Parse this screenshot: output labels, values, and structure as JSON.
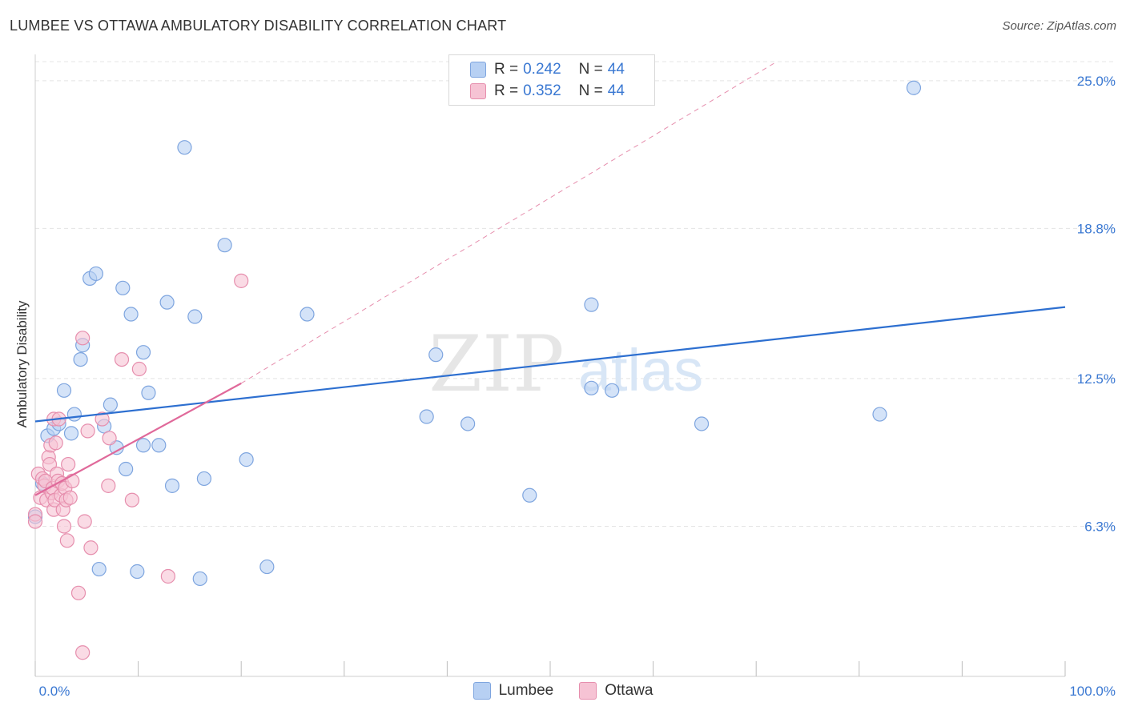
{
  "header": {
    "title": "LUMBEE VS OTTAWA AMBULATORY DISABILITY CORRELATION CHART",
    "source": "Source: ZipAtlas.com"
  },
  "watermark": {
    "zip": "ZIP",
    "atlas": "atlas"
  },
  "legend": {
    "rows": [
      {
        "r_key": "R =",
        "r_val": "0.242",
        "n_key": "N =",
        "n_val": "44"
      },
      {
        "r_key": "R =",
        "r_val": "0.352",
        "n_key": "N =",
        "n_val": "44"
      }
    ]
  },
  "bottom_legend": {
    "items": [
      "Lumbee",
      "Ottawa"
    ]
  },
  "colors": {
    "lumbee_fill": "#b7d0f3",
    "lumbee_stroke": "#7ea5df",
    "lumbee_line": "#2d6fd0",
    "ottawa_fill": "#f6c3d4",
    "ottawa_stroke": "#e68ead",
    "ottawa_line": "#e0699a",
    "grid": "#e4e4e4",
    "tick_label": "#3a78d2"
  },
  "chart_data": {
    "type": "scatter",
    "title": "LUMBEE VS OTTAWA AMBULATORY DISABILITY CORRELATION CHART",
    "ylabel": "Ambulatory Disability",
    "xlabel": "",
    "xlim": [
      0,
      100
    ],
    "ylim": [
      0,
      25.8
    ],
    "y_ticks": [
      6.3,
      12.5,
      18.8,
      25.0
    ],
    "y_tick_labels": [
      "6.3%",
      "12.5%",
      "18.8%",
      "25.0%"
    ],
    "x_tick_labels": [
      "0.0%",
      "100.0%"
    ],
    "grid": true,
    "legend_position": "top-center",
    "series": [
      {
        "name": "Lumbee",
        "r": 0.242,
        "n": 44,
        "trend": {
          "x": [
            0,
            100
          ],
          "y": [
            10.7,
            15.5
          ]
        },
        "points": [
          {
            "x": 0.0,
            "y": 6.7
          },
          {
            "x": 0.7,
            "y": 8.1
          },
          {
            "x": 1.2,
            "y": 10.1
          },
          {
            "x": 1.8,
            "y": 10.4
          },
          {
            "x": 2.3,
            "y": 10.6
          },
          {
            "x": 2.8,
            "y": 12.0
          },
          {
            "x": 3.5,
            "y": 10.2
          },
          {
            "x": 3.8,
            "y": 11.0
          },
          {
            "x": 4.4,
            "y": 13.3
          },
          {
            "x": 4.6,
            "y": 13.9
          },
          {
            "x": 5.3,
            "y": 16.7
          },
          {
            "x": 5.9,
            "y": 16.9
          },
          {
            "x": 6.2,
            "y": 4.5
          },
          {
            "x": 6.7,
            "y": 10.5
          },
          {
            "x": 7.3,
            "y": 11.4
          },
          {
            "x": 7.9,
            "y": 9.6
          },
          {
            "x": 8.5,
            "y": 16.3
          },
          {
            "x": 8.8,
            "y": 8.7
          },
          {
            "x": 9.3,
            "y": 15.2
          },
          {
            "x": 9.9,
            "y": 4.4
          },
          {
            "x": 10.5,
            "y": 13.6
          },
          {
            "x": 10.5,
            "y": 9.7
          },
          {
            "x": 11.0,
            "y": 11.9
          },
          {
            "x": 12.0,
            "y": 9.7
          },
          {
            "x": 12.8,
            "y": 15.7
          },
          {
            "x": 13.3,
            "y": 8.0
          },
          {
            "x": 14.5,
            "y": 22.2
          },
          {
            "x": 15.5,
            "y": 15.1
          },
          {
            "x": 16.0,
            "y": 4.1
          },
          {
            "x": 16.4,
            "y": 8.3
          },
          {
            "x": 18.4,
            "y": 18.1
          },
          {
            "x": 20.5,
            "y": 9.1
          },
          {
            "x": 22.5,
            "y": 4.6
          },
          {
            "x": 26.4,
            "y": 15.2
          },
          {
            "x": 38.0,
            "y": 10.9
          },
          {
            "x": 38.9,
            "y": 13.5
          },
          {
            "x": 42.0,
            "y": 10.6
          },
          {
            "x": 48.0,
            "y": 7.6
          },
          {
            "x": 54.0,
            "y": 15.6
          },
          {
            "x": 54.0,
            "y": 12.1
          },
          {
            "x": 56.0,
            "y": 12.0
          },
          {
            "x": 64.7,
            "y": 10.6
          },
          {
            "x": 82.0,
            "y": 11.0
          },
          {
            "x": 85.3,
            "y": 24.7
          }
        ]
      },
      {
        "name": "Ottawa",
        "r": 0.352,
        "n": 44,
        "trend": {
          "x": [
            0,
            20
          ],
          "y": [
            7.6,
            12.3
          ]
        },
        "trend_extended": {
          "x": [
            20,
            72
          ],
          "y": [
            12.3,
            25.8
          ]
        },
        "points": [
          {
            "x": 0.0,
            "y": 6.8
          },
          {
            "x": 0.3,
            "y": 8.5
          },
          {
            "x": 0.5,
            "y": 7.5
          },
          {
            "x": 0.7,
            "y": 8.3
          },
          {
            "x": 0.9,
            "y": 8.0
          },
          {
            "x": 1.0,
            "y": 8.2
          },
          {
            "x": 1.1,
            "y": 7.4
          },
          {
            "x": 1.3,
            "y": 9.2
          },
          {
            "x": 1.4,
            "y": 8.9
          },
          {
            "x": 1.5,
            "y": 9.7
          },
          {
            "x": 1.6,
            "y": 7.7
          },
          {
            "x": 1.7,
            "y": 7.9
          },
          {
            "x": 1.8,
            "y": 10.8
          },
          {
            "x": 1.8,
            "y": 7.0
          },
          {
            "x": 1.9,
            "y": 7.4
          },
          {
            "x": 2.0,
            "y": 9.8
          },
          {
            "x": 2.1,
            "y": 8.5
          },
          {
            "x": 2.2,
            "y": 8.2
          },
          {
            "x": 2.3,
            "y": 10.8
          },
          {
            "x": 2.5,
            "y": 7.6
          },
          {
            "x": 2.6,
            "y": 8.1
          },
          {
            "x": 2.7,
            "y": 7.0
          },
          {
            "x": 2.8,
            "y": 6.3
          },
          {
            "x": 2.9,
            "y": 7.9
          },
          {
            "x": 3.0,
            "y": 7.4
          },
          {
            "x": 3.1,
            "y": 5.7
          },
          {
            "x": 3.2,
            "y": 8.9
          },
          {
            "x": 3.4,
            "y": 7.5
          },
          {
            "x": 3.6,
            "y": 8.2
          },
          {
            "x": 4.2,
            "y": 3.5
          },
          {
            "x": 4.6,
            "y": 14.2
          },
          {
            "x": 4.6,
            "y": 1.0
          },
          {
            "x": 4.8,
            "y": 6.5
          },
          {
            "x": 5.1,
            "y": 10.3
          },
          {
            "x": 5.4,
            "y": 5.4
          },
          {
            "x": 6.5,
            "y": 10.8
          },
          {
            "x": 7.1,
            "y": 8.0
          },
          {
            "x": 7.2,
            "y": 10.0
          },
          {
            "x": 8.4,
            "y": 13.3
          },
          {
            "x": 9.4,
            "y": 7.4
          },
          {
            "x": 10.1,
            "y": 12.9
          },
          {
            "x": 12.9,
            "y": 4.2
          },
          {
            "x": 20.0,
            "y": 16.6
          },
          {
            "x": 0.0,
            "y": 6.5
          }
        ]
      }
    ]
  }
}
